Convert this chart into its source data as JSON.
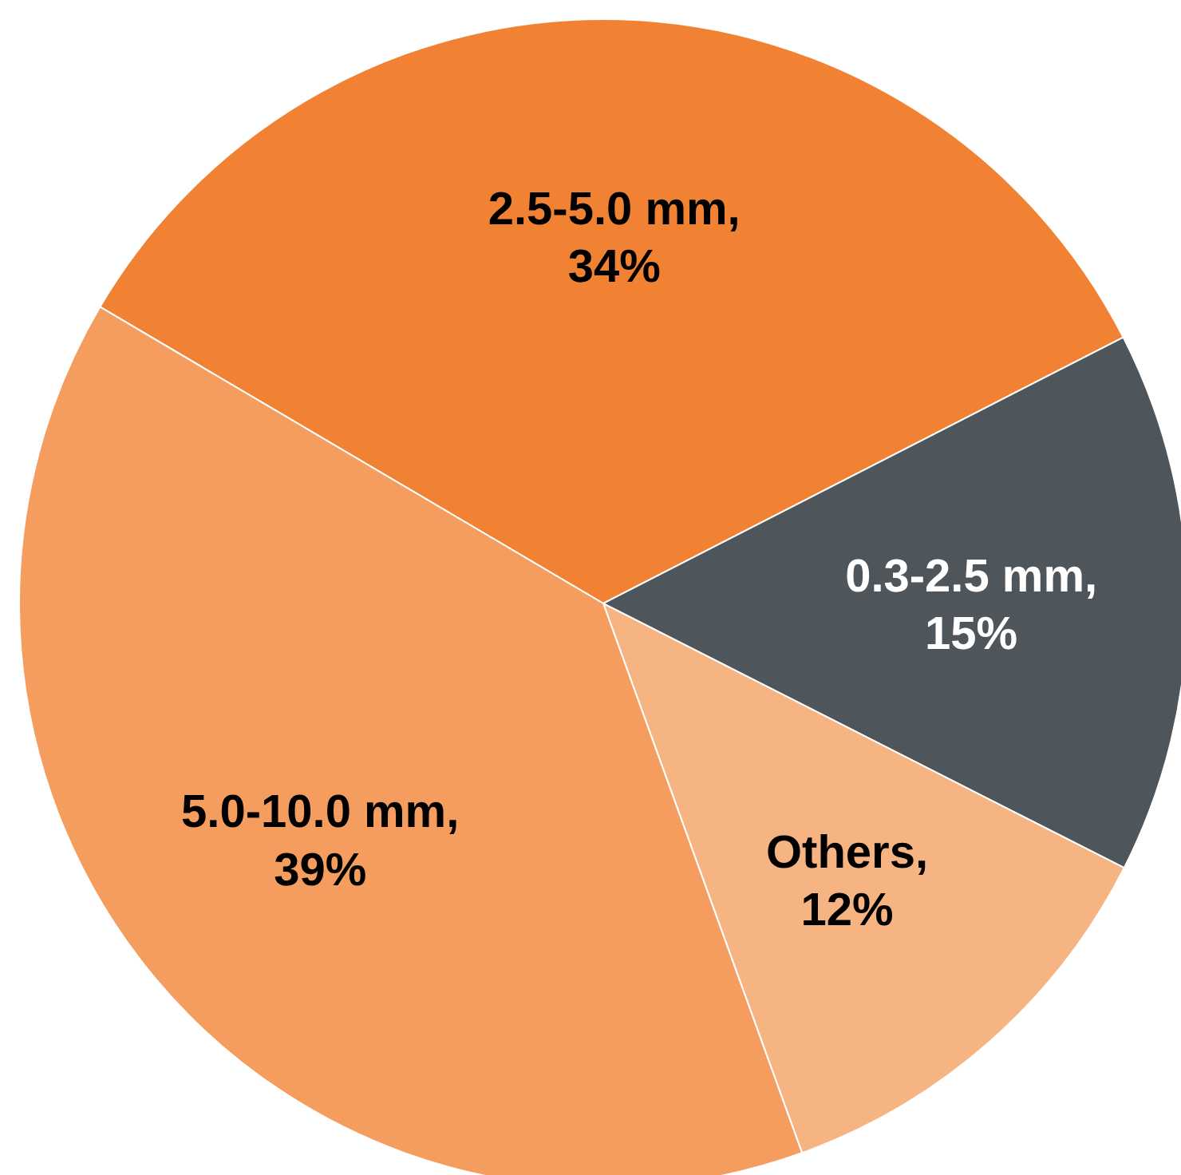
{
  "chart_data": {
    "type": "pie",
    "categories": [
      "2.5-5.0 mm",
      "0.3-2.5 mm",
      "Others",
      "5.0-10.0 mm"
    ],
    "values": [
      34,
      15,
      12,
      39
    ],
    "value_labels": [
      ", 34%",
      ", 15%",
      ", 12%",
      ", 39%"
    ],
    "colors": [
      "#f28233",
      "#4e555b",
      "#f7b483",
      "#f59d5e"
    ]
  }
}
